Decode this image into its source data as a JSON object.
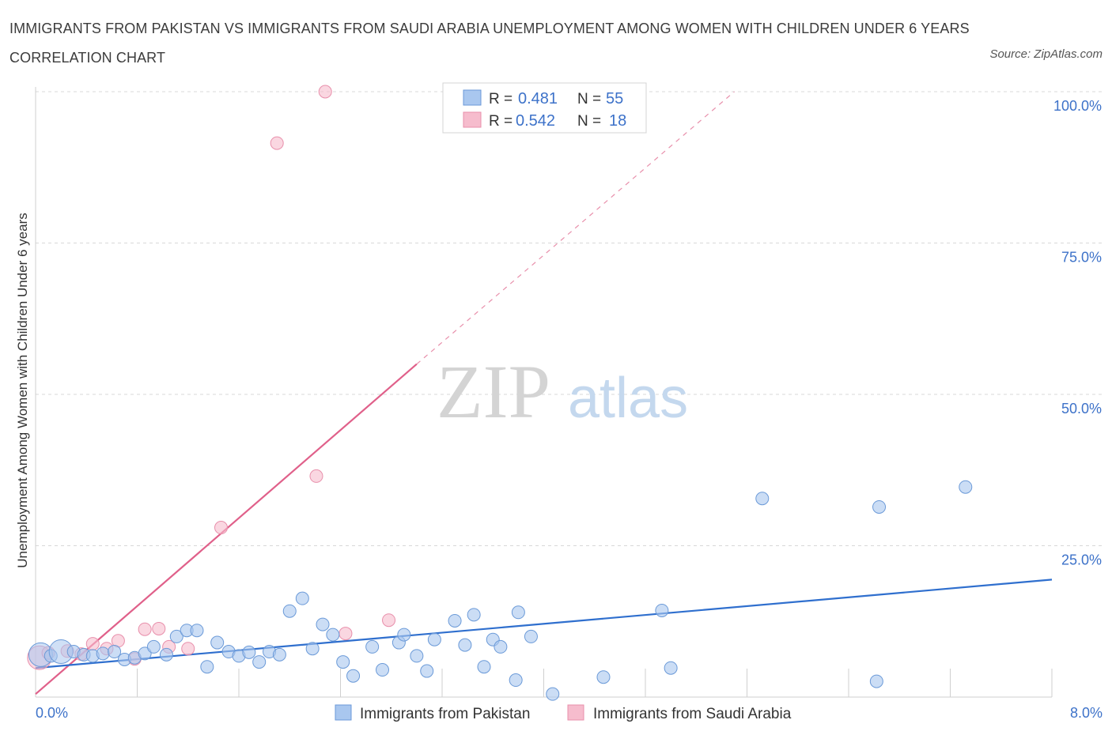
{
  "title": "IMMIGRANTS FROM PAKISTAN VS IMMIGRANTS FROM SAUDI ARABIA UNEMPLOYMENT AMONG WOMEN WITH CHILDREN UNDER 6 YEARS CORRELATION CHART",
  "source": "Source: ZipAtlas.com",
  "watermark": {
    "zip": "ZIP",
    "atlas": "atlas"
  },
  "colors": {
    "pakistan_fill": "#a9c7ef",
    "pakistan_stroke": "#6b9ad8",
    "pakistan_line": "#2f6fce",
    "saudi_fill": "#f6bccd",
    "saudi_stroke": "#e88fab",
    "saudi_line": "#e0608a",
    "tick_text": "#3d72c9",
    "grid": "#d8d8d8"
  },
  "stats": {
    "pakistan": {
      "r_label": "R =",
      "r": "0.481",
      "n_label": "N =",
      "n": "55"
    },
    "saudi": {
      "r_label": "R =",
      "r": "0.542",
      "n_label": "N =",
      "n": "18"
    }
  },
  "chart_data": {
    "type": "scatter",
    "xlabel": "",
    "ylabel": "Unemployment Among Women with Children Under 6 years",
    "xlim": [
      0,
      8
    ],
    "ylim": [
      0,
      100
    ],
    "x_tick_labels": [
      "0.0%",
      "8.0%"
    ],
    "y_ticks": [
      25,
      50,
      75,
      100
    ],
    "y_tick_labels": [
      "25.0%",
      "50.0%",
      "75.0%",
      "100.0%"
    ],
    "grid": true,
    "legend_position": "bottom",
    "series": [
      {
        "name": "Immigrants from Pakistan",
        "trend": {
          "x": [
            0,
            8
          ],
          "y": [
            4.8,
            19.4
          ],
          "style": "solid"
        },
        "points": [
          {
            "x": 0.04,
            "y": 7.0,
            "big": true
          },
          {
            "x": 0.12,
            "y": 6.8
          },
          {
            "x": 0.2,
            "y": 7.5,
            "big": true
          },
          {
            "x": 0.3,
            "y": 7.5
          },
          {
            "x": 0.38,
            "y": 7.0
          },
          {
            "x": 0.45,
            "y": 6.8
          },
          {
            "x": 0.53,
            "y": 7.2
          },
          {
            "x": 0.62,
            "y": 7.5
          },
          {
            "x": 0.7,
            "y": 6.2
          },
          {
            "x": 0.78,
            "y": 6.5
          },
          {
            "x": 0.86,
            "y": 7.2
          },
          {
            "x": 0.93,
            "y": 8.3
          },
          {
            "x": 1.03,
            "y": 7.0
          },
          {
            "x": 1.11,
            "y": 10.0
          },
          {
            "x": 1.19,
            "y": 11.0
          },
          {
            "x": 1.27,
            "y": 11.0
          },
          {
            "x": 1.35,
            "y": 5.0
          },
          {
            "x": 1.43,
            "y": 9.0
          },
          {
            "x": 1.52,
            "y": 7.5
          },
          {
            "x": 1.6,
            "y": 6.8
          },
          {
            "x": 1.68,
            "y": 7.4
          },
          {
            "x": 1.76,
            "y": 5.8
          },
          {
            "x": 1.84,
            "y": 7.5
          },
          {
            "x": 1.92,
            "y": 7.0
          },
          {
            "x": 2.0,
            "y": 14.2
          },
          {
            "x": 2.1,
            "y": 16.3
          },
          {
            "x": 2.18,
            "y": 8.0
          },
          {
            "x": 2.26,
            "y": 12.0
          },
          {
            "x": 2.34,
            "y": 10.3
          },
          {
            "x": 2.42,
            "y": 5.8
          },
          {
            "x": 2.5,
            "y": 3.5
          },
          {
            "x": 2.65,
            "y": 8.3
          },
          {
            "x": 2.73,
            "y": 4.5
          },
          {
            "x": 2.86,
            "y": 9.0
          },
          {
            "x": 2.9,
            "y": 10.3
          },
          {
            "x": 3.0,
            "y": 6.8
          },
          {
            "x": 3.08,
            "y": 4.3
          },
          {
            "x": 3.14,
            "y": 9.5
          },
          {
            "x": 3.3,
            "y": 12.6
          },
          {
            "x": 3.38,
            "y": 8.6
          },
          {
            "x": 3.45,
            "y": 13.6
          },
          {
            "x": 3.53,
            "y": 5.0
          },
          {
            "x": 3.6,
            "y": 9.5
          },
          {
            "x": 3.66,
            "y": 8.3
          },
          {
            "x": 3.78,
            "y": 2.8
          },
          {
            "x": 3.8,
            "y": 14.0
          },
          {
            "x": 3.9,
            "y": 10.0
          },
          {
            "x": 4.07,
            "y": 0.5
          },
          {
            "x": 4.47,
            "y": 3.3
          },
          {
            "x": 4.93,
            "y": 14.3
          },
          {
            "x": 5.0,
            "y": 4.8
          },
          {
            "x": 5.72,
            "y": 32.8
          },
          {
            "x": 6.62,
            "y": 2.6
          },
          {
            "x": 6.64,
            "y": 31.4
          },
          {
            "x": 7.32,
            "y": 34.7
          }
        ]
      },
      {
        "name": "Immigrants from Saudi Arabia",
        "trend": {
          "x": [
            0,
            3.0
          ],
          "y": [
            0.5,
            55.0
          ],
          "style": "solid",
          "extended": {
            "x": [
              3.0,
              5.5
            ],
            "y": [
              55.0,
              100.0
            ],
            "style": "dashed"
          }
        },
        "points": [
          {
            "x": 0.03,
            "y": 6.5,
            "big": true
          },
          {
            "x": 0.1,
            "y": 7.3
          },
          {
            "x": 0.25,
            "y": 7.6
          },
          {
            "x": 0.36,
            "y": 7.1
          },
          {
            "x": 0.45,
            "y": 8.8
          },
          {
            "x": 0.56,
            "y": 8.0
          },
          {
            "x": 0.65,
            "y": 9.3
          },
          {
            "x": 0.78,
            "y": 6.3
          },
          {
            "x": 0.86,
            "y": 11.2
          },
          {
            "x": 0.97,
            "y": 11.3
          },
          {
            "x": 1.05,
            "y": 8.3
          },
          {
            "x": 1.2,
            "y": 8.0
          },
          {
            "x": 1.46,
            "y": 28.0
          },
          {
            "x": 1.9,
            "y": 91.5
          },
          {
            "x": 2.21,
            "y": 36.5
          },
          {
            "x": 2.28,
            "y": 100.0
          },
          {
            "x": 2.44,
            "y": 10.5
          },
          {
            "x": 2.78,
            "y": 12.7
          }
        ]
      }
    ]
  },
  "legend": {
    "pakistan": "Immigrants from Pakistan",
    "saudi": "Immigrants from Saudi Arabia"
  }
}
